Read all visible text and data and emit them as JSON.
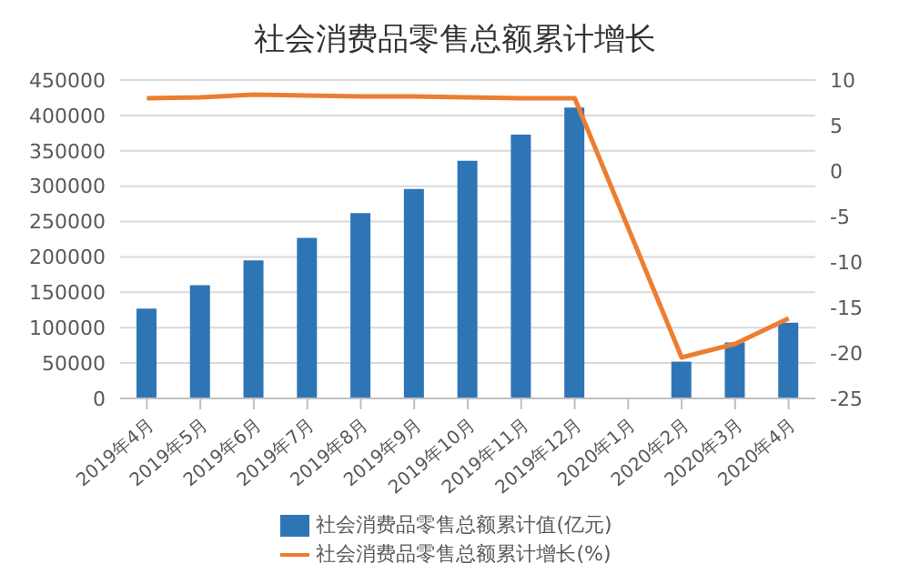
{
  "chart_data": {
    "type": "bar",
    "title": "社会消费品零售总额累计增长",
    "categories": [
      "2019年4月",
      "2019年5月",
      "2019年6月",
      "2019年7月",
      "2019年8月",
      "2019年9月",
      "2019年10月",
      "2019年11月",
      "2019年12月",
      "2020年1月",
      "2020年2月",
      "2020年3月",
      "2020年4月"
    ],
    "series": [
      {
        "name": "社会消费品零售总额累计值(亿元)",
        "color": "#2e75b6",
        "values": [
          127000,
          160000,
          195000,
          227000,
          262000,
          296000,
          336000,
          373000,
          411000,
          null,
          52000,
          79000,
          107000
        ]
      },
      {
        "name": "社会消费品零售总额累计增长(%)",
        "type": "line",
        "axis": "y2",
        "color": "#ed7d31",
        "values": [
          8.0,
          8.1,
          8.4,
          8.3,
          8.2,
          8.2,
          8.1,
          8.0,
          8.0,
          null,
          -20.5,
          -19.0,
          -16.2
        ]
      }
    ],
    "ylim": [
      0,
      450000
    ],
    "yticks": [
      0,
      50000,
      100000,
      150000,
      200000,
      250000,
      300000,
      350000,
      400000,
      450000
    ],
    "y2lim": [
      -25,
      10
    ],
    "y2ticks": [
      -25,
      -20,
      -15,
      -10,
      -5,
      0,
      5,
      10
    ],
    "grid": "y",
    "legend": "bottom",
    "marker": "none",
    "line_style": "solid"
  }
}
